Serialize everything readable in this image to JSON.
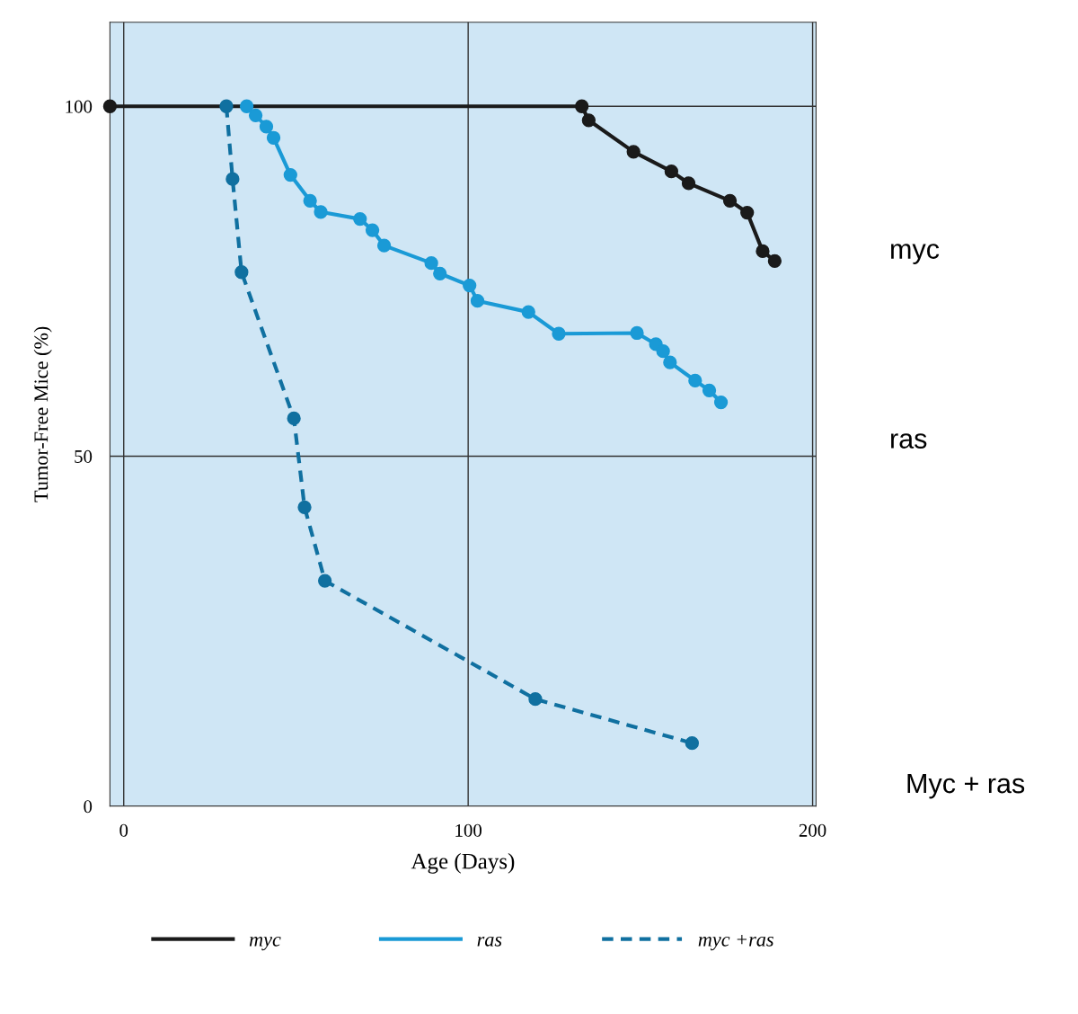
{
  "chart_data": {
    "type": "line",
    "xlabel": "Age (Days)",
    "ylabel": "Tumor-Free Mice (%)",
    "xlim": [
      -4,
      201
    ],
    "xticks": [
      0,
      100,
      200
    ],
    "ylim": [
      0,
      112
    ],
    "yticks": [
      0,
      50,
      100
    ],
    "grid": true,
    "legend": "bottom",
    "marker": "circle",
    "series": [
      {
        "name": "myc",
        "color": "#1a1a1a",
        "line_style": "solid",
        "x": [
          -4,
          133,
          135,
          148,
          159,
          164,
          176,
          181,
          185.5,
          189
        ],
        "values": [
          100,
          100,
          98,
          93.5,
          90.7,
          89,
          86.5,
          84.8,
          79.3,
          77.9
        ]
      },
      {
        "name": "ras",
        "color": "#1a9ad6",
        "line_style": "solid",
        "x": [
          35.7,
          38.3,
          41.4,
          43.5,
          48.4,
          54.1,
          57.2,
          68.6,
          72.2,
          75.6,
          89.3,
          91.8,
          100.4,
          102.7,
          117.5,
          126.3,
          149,
          154.5,
          156.6,
          158.6,
          165.9,
          170,
          173.4
        ],
        "values": [
          100,
          98.7,
          97.1,
          95.5,
          90.2,
          86.5,
          84.9,
          83.9,
          82.3,
          80.1,
          77.6,
          76.1,
          74.4,
          72.2,
          70.6,
          67.5,
          67.6,
          66,
          65,
          63.4,
          60.8,
          59.4,
          57.7
        ]
      },
      {
        "name": "myc +ras",
        "color": "#1070a0",
        "line_style": "dashed",
        "x": [
          29.8,
          31.6,
          34.2,
          49.4,
          52.5,
          58.4,
          119.5,
          165
        ],
        "values": [
          100,
          89.6,
          76.3,
          55.4,
          42.7,
          32.2,
          15.3,
          9
        ]
      }
    ],
    "annotations": [
      "myc",
      "ras",
      "Myc + ras"
    ]
  }
}
